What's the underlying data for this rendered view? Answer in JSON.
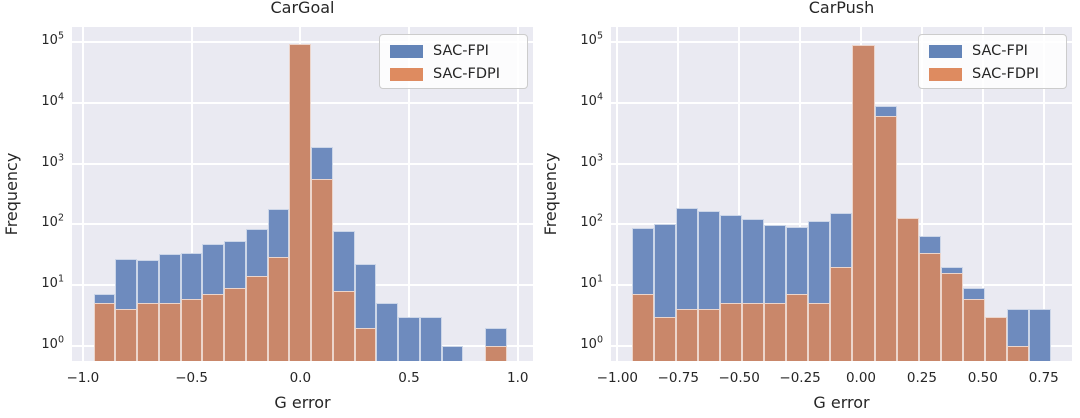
{
  "figure": {
    "background": "#ffffff",
    "plot_background": "#eaeaf2",
    "grid_color": "#ffffff",
    "text_color": "#262626",
    "bar_colors": {
      "SAC-FPI": "#6e8bbe",
      "SAC-FDPI": "#c9876a"
    },
    "legend_swatch_colors": {
      "SAC-FPI": "#6384b8",
      "SAC-FDPI": "#de8b60"
    },
    "legend_border_color": "#cccccc",
    "legend_background": "rgba(255,255,255,0.85)"
  },
  "chart_data": [
    {
      "type": "bar",
      "subtype": "overlaid-histogram-log-y",
      "title": "CarGoal",
      "xlabel": "G error",
      "ylabel": "Frequency",
      "yscale": "log",
      "grid": true,
      "legend_position": "upper right",
      "legend": [
        "SAC-FPI",
        "SAC-FDPI"
      ],
      "xlim": [
        -1.05,
        1.07
      ],
      "ylim_exponents": [
        -0.25,
        5.25
      ],
      "x_ticks": [
        -1.0,
        -0.5,
        0.0,
        0.5,
        1.0
      ],
      "x_tick_labels": [
        "−1.0",
        "−0.5",
        "0.0",
        "0.5",
        "1.0"
      ],
      "y_tick_exponents": [
        0,
        1,
        2,
        3,
        4,
        5
      ],
      "y_tick_labels": [
        "10⁰",
        "10¹",
        "10²",
        "10³",
        "10⁴",
        "10⁵"
      ],
      "bin_start": -0.95,
      "bin_width": 0.1,
      "bin_count": 19,
      "series": [
        {
          "name": "SAC-FPI",
          "color": "#6e8bbe",
          "values": [
            7,
            27,
            26,
            33,
            34,
            48,
            53,
            85,
            180,
            92000,
            1900,
            78,
            22,
            5,
            3,
            3,
            1,
            0,
            2
          ]
        },
        {
          "name": "SAC-FDPI",
          "color": "#c9876a",
          "values": [
            5,
            4,
            5,
            5,
            6,
            7,
            9,
            14,
            29,
            95000,
            550,
            8,
            2,
            0,
            0,
            0,
            0,
            0,
            1
          ]
        }
      ]
    },
    {
      "type": "bar",
      "subtype": "overlaid-histogram-log-y",
      "title": "CarPush",
      "xlabel": "G error",
      "ylabel": "Frequency",
      "yscale": "log",
      "grid": true,
      "legend_position": "upper right",
      "legend": [
        "SAC-FPI",
        "SAC-FDPI"
      ],
      "xlim": [
        -1.026,
        0.866
      ],
      "ylim_exponents": [
        -0.25,
        5.25
      ],
      "x_ticks": [
        -1.0,
        -0.75,
        -0.5,
        -0.25,
        0.0,
        0.25,
        0.5,
        0.75
      ],
      "x_tick_labels": [
        "−1.00",
        "−0.75",
        "−0.50",
        "−0.25",
        "0.00",
        "0.25",
        "0.50",
        "0.75"
      ],
      "y_tick_exponents": [
        0,
        1,
        2,
        3,
        4,
        5
      ],
      "y_tick_labels": [
        "10⁰",
        "10¹",
        "10²",
        "10³",
        "10⁴",
        "10⁵"
      ],
      "bin_start": -0.94,
      "bin_width": 0.0905,
      "bin_count": 19,
      "series": [
        {
          "name": "SAC-FPI",
          "color": "#6e8bbe",
          "values": [
            86,
            100,
            185,
            167,
            143,
            123,
            98,
            92,
            114,
            153,
            88000,
            8800,
            120,
            65,
            20,
            9,
            3,
            4,
            4
          ]
        },
        {
          "name": "SAC-FDPI",
          "color": "#c9876a",
          "values": [
            7,
            3,
            4,
            4,
            5,
            5,
            5,
            7,
            5,
            20,
            90000,
            6200,
            126,
            34,
            16,
            6,
            3,
            1,
            0
          ]
        }
      ]
    }
  ]
}
